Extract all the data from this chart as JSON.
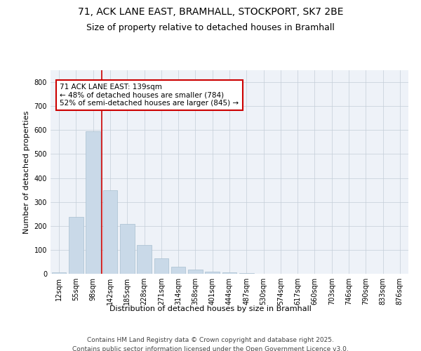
{
  "title_line1": "71, ACK LANE EAST, BRAMHALL, STOCKPORT, SK7 2BE",
  "title_line2": "Size of property relative to detached houses in Bramhall",
  "xlabel": "Distribution of detached houses by size in Bramhall",
  "ylabel": "Number of detached properties",
  "categories": [
    "12sqm",
    "55sqm",
    "98sqm",
    "142sqm",
    "185sqm",
    "228sqm",
    "271sqm",
    "314sqm",
    "358sqm",
    "401sqm",
    "444sqm",
    "487sqm",
    "530sqm",
    "574sqm",
    "617sqm",
    "660sqm",
    "703sqm",
    "746sqm",
    "790sqm",
    "833sqm",
    "876sqm"
  ],
  "values": [
    5,
    237,
    595,
    350,
    207,
    120,
    65,
    30,
    18,
    10,
    5,
    2,
    0,
    0,
    0,
    0,
    0,
    0,
    0,
    0,
    0
  ],
  "bar_color": "#c9d9e8",
  "bar_edge_color": "#a8bfd0",
  "annotation_text": "71 ACK LANE EAST: 139sqm\n← 48% of detached houses are smaller (784)\n52% of semi-detached houses are larger (845) →",
  "annotation_box_color": "#ffffff",
  "annotation_box_edge_color": "#cc0000",
  "vline_x": 2.5,
  "vline_color": "#cc0000",
  "ylim": [
    0,
    850
  ],
  "yticks": [
    0,
    100,
    200,
    300,
    400,
    500,
    600,
    700,
    800
  ],
  "background_color": "#eef2f8",
  "footer_line1": "Contains HM Land Registry data © Crown copyright and database right 2025.",
  "footer_line2": "Contains public sector information licensed under the Open Government Licence v3.0.",
  "title_fontsize": 10,
  "subtitle_fontsize": 9,
  "axis_label_fontsize": 8,
  "tick_fontsize": 7,
  "annotation_fontsize": 7.5,
  "footer_fontsize": 6.5
}
